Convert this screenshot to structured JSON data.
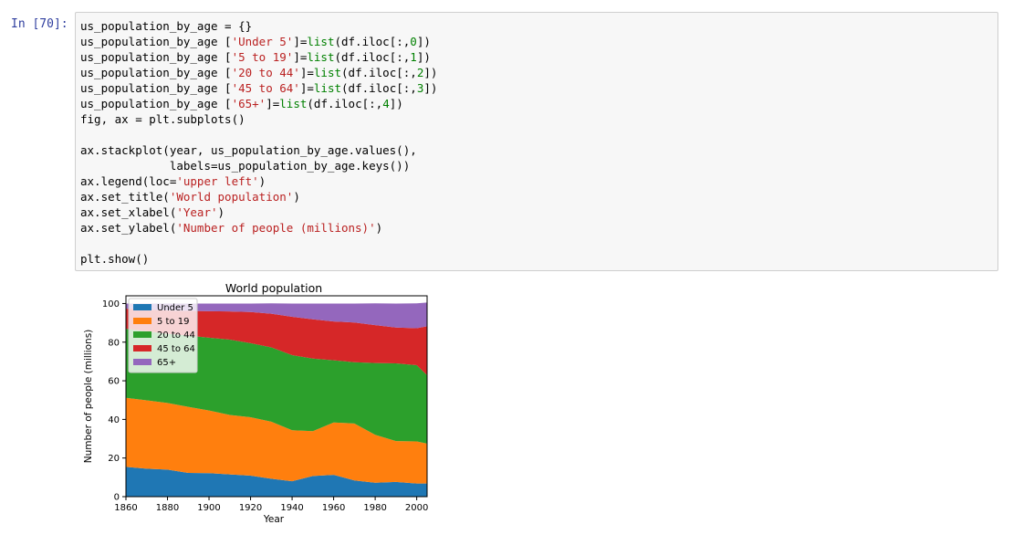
{
  "cell": {
    "prompt": "In  [70]:",
    "code_lines": [
      [
        {
          "t": "us_population_by_age = {}",
          "c": ""
        }
      ],
      [
        {
          "t": "us_population_by_age [",
          "c": ""
        },
        {
          "t": "'Under 5'",
          "c": "str"
        },
        {
          "t": "]=",
          "c": ""
        },
        {
          "t": "list",
          "c": "bi"
        },
        {
          "t": "(df.iloc[:,",
          "c": ""
        },
        {
          "t": "0",
          "c": "num"
        },
        {
          "t": "])",
          "c": ""
        }
      ],
      [
        {
          "t": "us_population_by_age [",
          "c": ""
        },
        {
          "t": "'5 to 19'",
          "c": "str"
        },
        {
          "t": "]=",
          "c": ""
        },
        {
          "t": "list",
          "c": "bi"
        },
        {
          "t": "(df.iloc[:,",
          "c": ""
        },
        {
          "t": "1",
          "c": "num"
        },
        {
          "t": "])",
          "c": ""
        }
      ],
      [
        {
          "t": "us_population_by_age [",
          "c": ""
        },
        {
          "t": "'20 to 44'",
          "c": "str"
        },
        {
          "t": "]=",
          "c": ""
        },
        {
          "t": "list",
          "c": "bi"
        },
        {
          "t": "(df.iloc[:,",
          "c": ""
        },
        {
          "t": "2",
          "c": "num"
        },
        {
          "t": "])",
          "c": ""
        }
      ],
      [
        {
          "t": "us_population_by_age [",
          "c": ""
        },
        {
          "t": "'45 to 64'",
          "c": "str"
        },
        {
          "t": "]=",
          "c": ""
        },
        {
          "t": "list",
          "c": "bi"
        },
        {
          "t": "(df.iloc[:,",
          "c": ""
        },
        {
          "t": "3",
          "c": "num"
        },
        {
          "t": "])",
          "c": ""
        }
      ],
      [
        {
          "t": "us_population_by_age [",
          "c": ""
        },
        {
          "t": "'65+'",
          "c": "str"
        },
        {
          "t": "]=",
          "c": ""
        },
        {
          "t": "list",
          "c": "bi"
        },
        {
          "t": "(df.iloc[:,",
          "c": ""
        },
        {
          "t": "4",
          "c": "num"
        },
        {
          "t": "])",
          "c": ""
        }
      ],
      [
        {
          "t": "fig, ax = plt.subplots()",
          "c": ""
        }
      ],
      [],
      [
        {
          "t": "ax.stackplot(year, us_population_by_age.values(),",
          "c": ""
        }
      ],
      [
        {
          "t": "             labels=us_population_by_age.keys())",
          "c": ""
        }
      ],
      [
        {
          "t": "ax.legend(loc=",
          "c": ""
        },
        {
          "t": "'upper left'",
          "c": "str"
        },
        {
          "t": ")",
          "c": ""
        }
      ],
      [
        {
          "t": "ax.set_title(",
          "c": ""
        },
        {
          "t": "'World population'",
          "c": "str"
        },
        {
          "t": ")",
          "c": ""
        }
      ],
      [
        {
          "t": "ax.set_xlabel(",
          "c": ""
        },
        {
          "t": "'Year'",
          "c": "str"
        },
        {
          "t": ")",
          "c": ""
        }
      ],
      [
        {
          "t": "ax.set_ylabel(",
          "c": ""
        },
        {
          "t": "'Number of people (millions)'",
          "c": "str"
        },
        {
          "t": ")",
          "c": ""
        }
      ],
      [],
      [
        {
          "t": "plt.show()",
          "c": ""
        }
      ]
    ]
  },
  "chart_data": {
    "type": "area",
    "stacked": true,
    "title": "World population",
    "xlabel": "Year",
    "ylabel": "Number of people (millions)",
    "x": [
      1860,
      1870,
      1880,
      1890,
      1900,
      1910,
      1920,
      1930,
      1940,
      1950,
      1960,
      1970,
      1980,
      1990,
      2000,
      2005
    ],
    "xlim": [
      1860,
      2005
    ],
    "ylim": [
      0,
      104
    ],
    "xticks": [
      1860,
      1880,
      1900,
      1920,
      1940,
      1960,
      1980,
      2000
    ],
    "yticks": [
      0,
      20,
      40,
      60,
      80,
      100
    ],
    "legend": "upper left",
    "series": [
      {
        "name": "Under 5",
        "color": "#1f77b4",
        "values": [
          15.4,
          14.5,
          14,
          12.3,
          12.2,
          11.5,
          10.9,
          9.3,
          8,
          10.7,
          11.3,
          8.4,
          7.2,
          7.6,
          6.8,
          6.8
        ]
      },
      {
        "name": "5 to 19",
        "color": "#ff7f0e",
        "values": [
          35.8,
          35.4,
          34.5,
          34.2,
          32.4,
          30.8,
          30.2,
          29.5,
          26.4,
          23.2,
          27.1,
          29.5,
          24.8,
          21.2,
          21.8,
          20.7
        ]
      },
      {
        "name": "20 to 44",
        "color": "#2ca02c",
        "values": [
          35.7,
          35.7,
          35.8,
          36.9,
          37.7,
          39.0,
          38.4,
          38.5,
          38.9,
          37.6,
          32.2,
          31.7,
          37.2,
          40.2,
          39.5,
          35.4
        ]
      },
      {
        "name": "45 to 64",
        "color": "#d62728",
        "values": [
          10.4,
          11.3,
          12.1,
          12.8,
          13.7,
          14.6,
          16.1,
          17.4,
          19.8,
          20.3,
          20.1,
          20.6,
          19.6,
          18.6,
          19.1,
          25.3
        ]
      },
      {
        "name": "65+",
        "color": "#9467bd",
        "values": [
          2.7,
          3.1,
          3.6,
          3.8,
          4.0,
          4.1,
          4.4,
          5.4,
          6.9,
          8.2,
          9.3,
          9.8,
          11.3,
          12.4,
          12.9,
          12.3
        ]
      }
    ]
  }
}
